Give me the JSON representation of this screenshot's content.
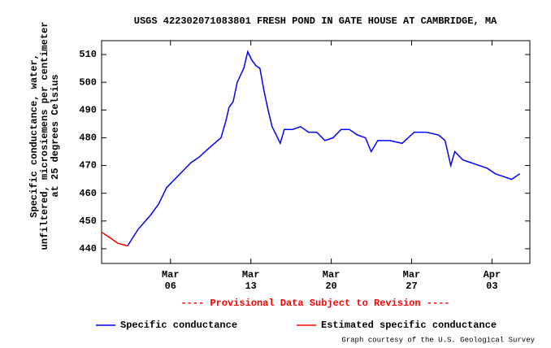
{
  "chart_data": {
    "type": "line",
    "title": "USGS 422302071083801 FRESH POND IN GATE HOUSE AT CAMBRIDGE, MA",
    "ylabel": [
      "Specific conductance, water,",
      "unfiltered, microsiemens per centimeter",
      "at 25 degrees Celsius"
    ],
    "annotation": "---- Provisional Data Subject to Revision ----",
    "credit": "Graph courtesy of the U.S. Geological Survey",
    "xlim": [
      0,
      37.3
    ],
    "xticks": [
      {
        "value": 6,
        "label": [
          "Mar",
          "06"
        ]
      },
      {
        "value": 13,
        "label": [
          "Mar",
          "13"
        ]
      },
      {
        "value": 20,
        "label": [
          "Mar",
          "20"
        ]
      },
      {
        "value": 27,
        "label": [
          "Mar",
          "27"
        ]
      },
      {
        "value": 34,
        "label": [
          "Apr",
          "03"
        ]
      }
    ],
    "ylim": [
      434.7,
      515
    ],
    "yticks": [
      440,
      450,
      460,
      470,
      480,
      490,
      500,
      510
    ],
    "series": [
      {
        "name": "Specific conductance",
        "color": "#0000ff",
        "x": [
          2.26,
          3.18,
          4.24,
          4.95,
          5.66,
          6.36,
          7.07,
          7.78,
          8.49,
          9.55,
          10.4,
          10.82,
          11.1,
          11.46,
          11.81,
          12.38,
          12.73,
          13.08,
          13.44,
          13.79,
          14.14,
          14.5,
          14.85,
          15.21,
          15.56,
          15.91,
          16.62,
          17.33,
          18.03,
          18.74,
          19.45,
          20.16,
          20.86,
          21.57,
          22.28,
          22.98,
          23.48,
          24.05,
          25.11,
          26.17,
          27.23,
          28.29,
          29.35,
          29.91,
          30.41,
          30.76,
          31.47,
          32.18,
          32.89,
          33.59,
          34.3,
          35.01,
          35.71,
          36.42
        ],
        "values": [
          441,
          447,
          452,
          456,
          462,
          465,
          468,
          471,
          473,
          477,
          480,
          486,
          491,
          493,
          500,
          505,
          511,
          508,
          506,
          505,
          497,
          490,
          484,
          481,
          478,
          483,
          483,
          484,
          482,
          482,
          479,
          480,
          483,
          483,
          481,
          480,
          475,
          479,
          479,
          478,
          482,
          482,
          481,
          479,
          470,
          475,
          472,
          471,
          470,
          469,
          467,
          466,
          465,
          467
        ]
      },
      {
        "name": "Estimated specific conductance",
        "color": "#ff0000",
        "x": [
          0,
          0.71,
          1.41,
          2.26
        ],
        "values": [
          446,
          444,
          442,
          441
        ]
      }
    ]
  }
}
